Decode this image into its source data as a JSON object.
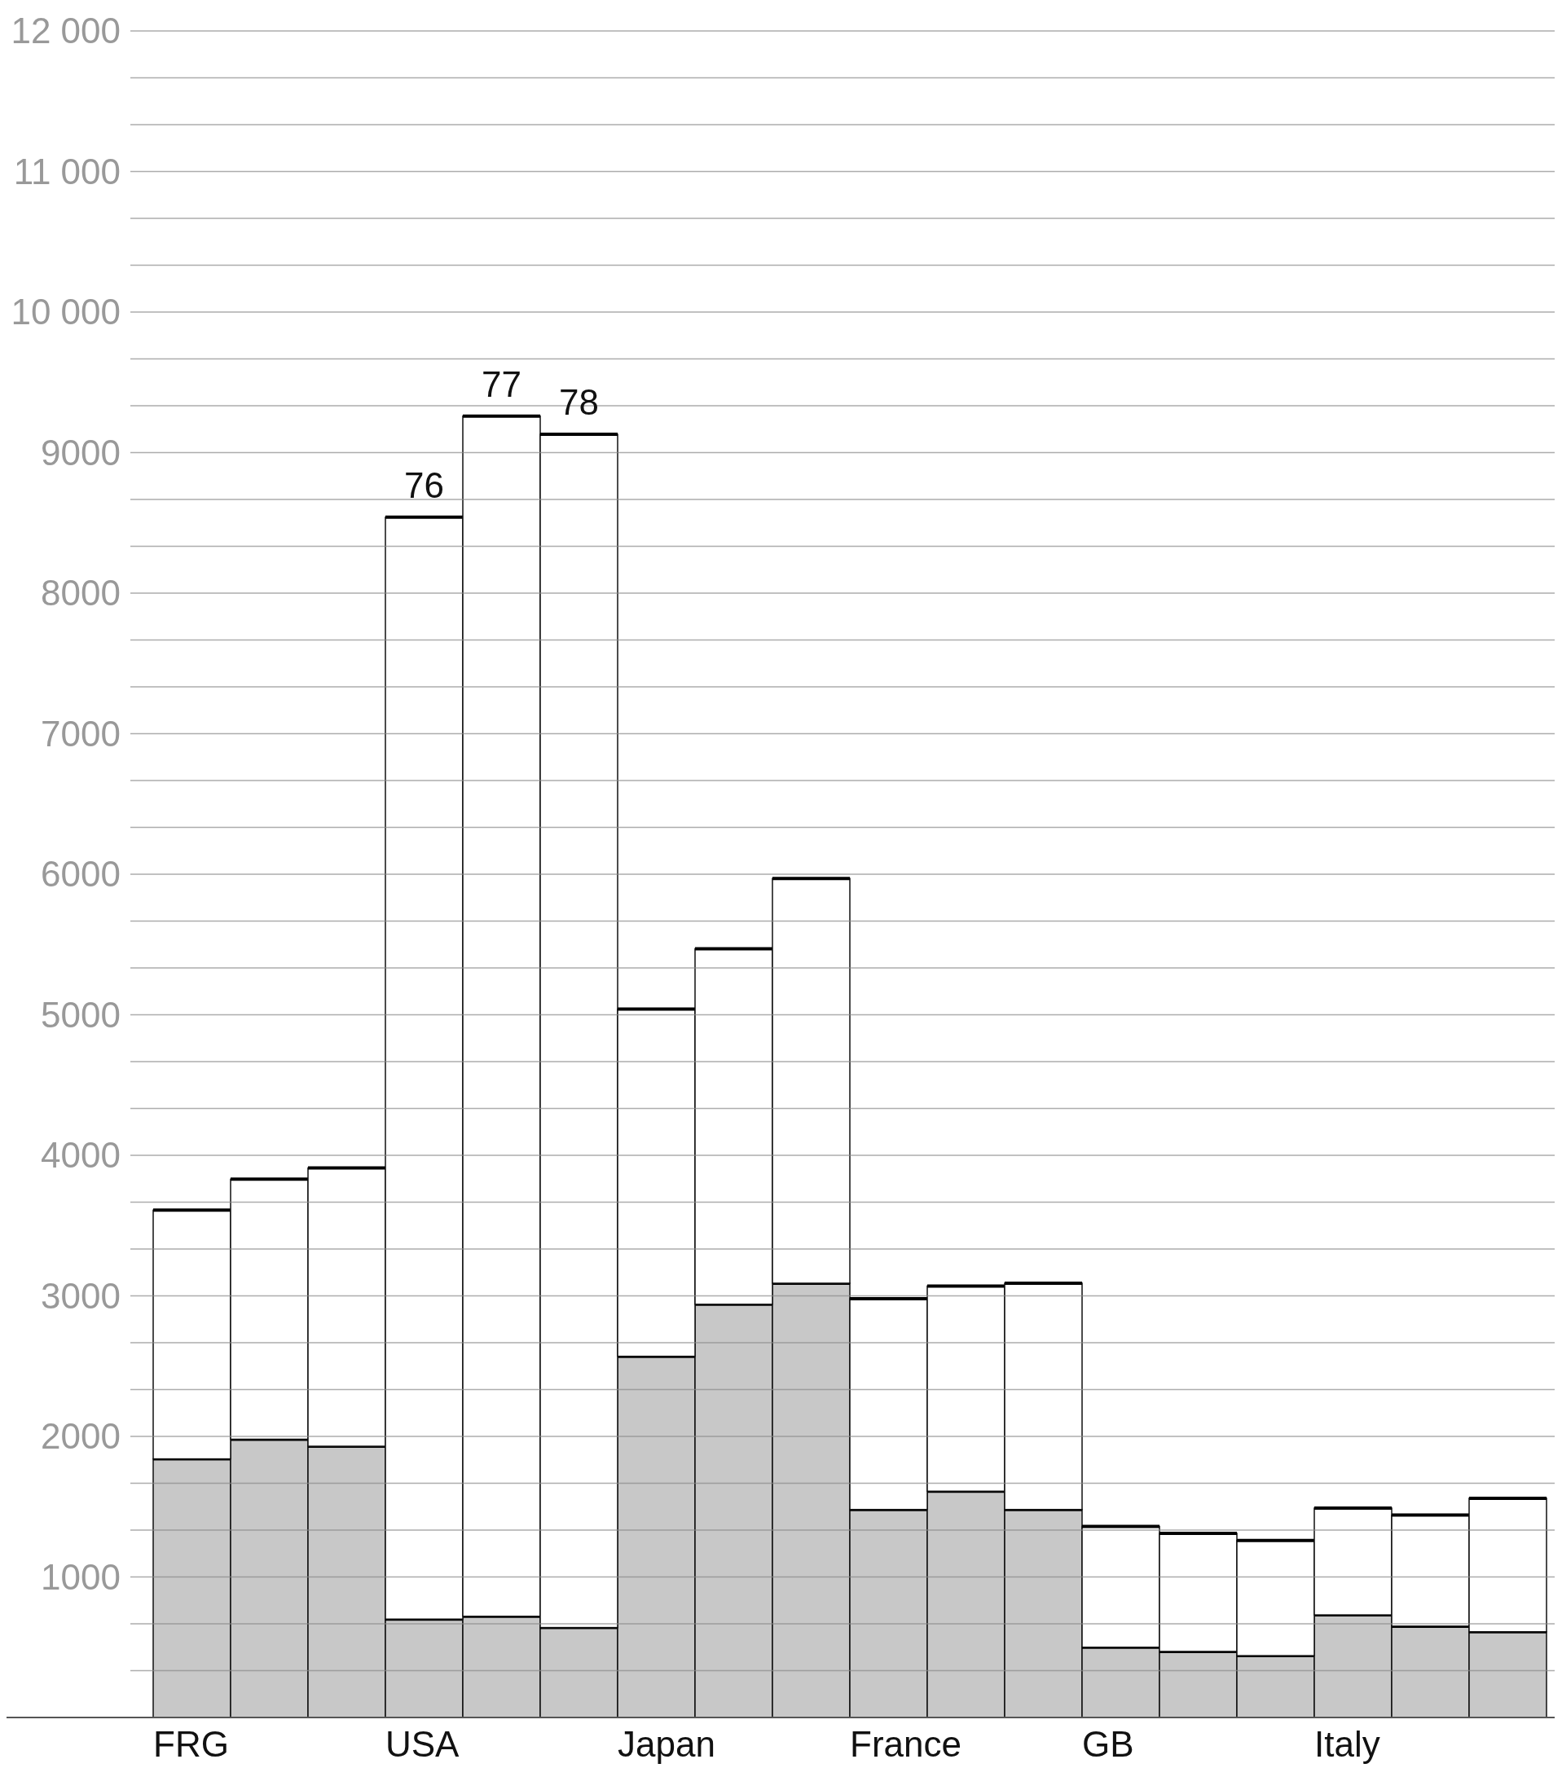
{
  "chart_data": {
    "type": "bar",
    "stacked": true,
    "categories": [
      "FRG",
      null,
      null,
      "USA",
      null,
      null,
      "Japan",
      null,
      null,
      "France",
      null,
      null,
      "GB",
      null,
      null,
      "Italy",
      null,
      null
    ],
    "series": [
      {
        "color": "#c8c8c8",
        "values": [
          1840,
          1980,
          1930,
          700,
          720,
          640,
          2570,
          2940,
          3090,
          1480,
          1610,
          1480,
          500,
          470,
          440,
          730,
          650,
          610
        ]
      },
      {
        "color": "#ffffff",
        "values": [
          1770,
          1850,
          1980,
          7840,
          8540,
          8490,
          2470,
          2530,
          2880,
          1500,
          1460,
          1610,
          860,
          840,
          820,
          760,
          790,
          950
        ]
      }
    ],
    "ylim": [
      0,
      12000
    ],
    "yticks": [
      {
        "value": 333,
        "label": null
      },
      {
        "value": 667,
        "label": null
      },
      1000,
      {
        "value": 1333,
        "label": null
      },
      {
        "value": 1667,
        "label": null
      },
      2000,
      {
        "value": 2333,
        "label": null
      },
      {
        "value": 2667,
        "label": null
      },
      3000,
      {
        "value": 3333,
        "label": null
      },
      {
        "value": 3667,
        "label": null
      },
      4000,
      {
        "value": 4333,
        "label": null
      },
      {
        "value": 4667,
        "label": null
      },
      5000,
      {
        "value": 5333,
        "label": null
      },
      {
        "value": 5667,
        "label": null
      },
      6000,
      {
        "value": 6333,
        "label": null
      },
      {
        "value": 6667,
        "label": null
      },
      7000,
      {
        "value": 7333,
        "label": null
      },
      {
        "value": 7667,
        "label": null
      },
      8000,
      {
        "value": 8333,
        "label": null
      },
      {
        "value": 8667,
        "label": null
      },
      9000,
      {
        "value": 9333,
        "label": null
      },
      {
        "value": 9667,
        "label": null
      },
      {
        "value": 10000,
        "label": "10 000"
      },
      {
        "value": 10333,
        "label": null
      },
      {
        "value": 10667,
        "label": null
      },
      {
        "value": 11000,
        "label": "11 000"
      },
      {
        "value": 11333,
        "label": null
      },
      {
        "value": 11667,
        "label": null
      },
      {
        "value": 12000,
        "label": "12 000"
      }
    ],
    "grid": "y",
    "annotations": [
      {
        "text": "76",
        "y": 8540
      },
      {
        "text": "77",
        "y": 9260
      },
      {
        "text": "78",
        "y": 9130
      }
    ]
  }
}
